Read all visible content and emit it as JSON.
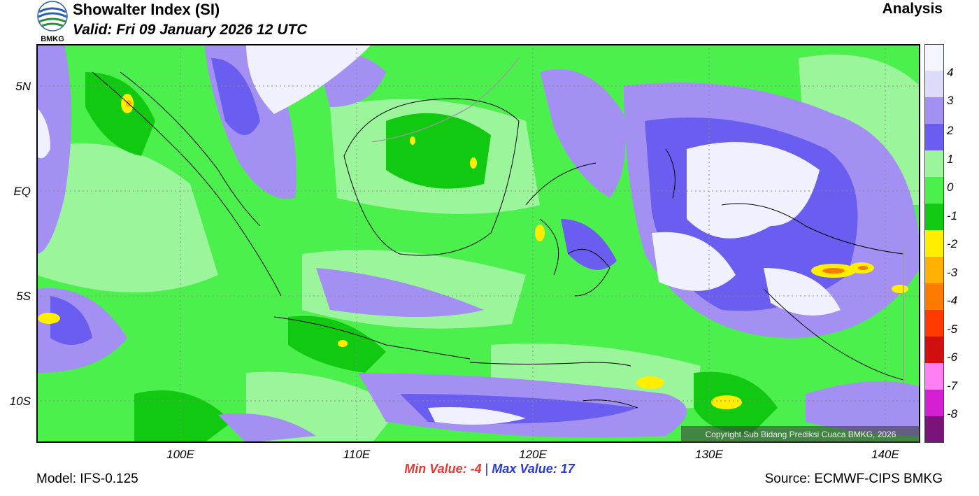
{
  "header": {
    "title": "Showalter Index (SI)",
    "valid": "Valid: Fri 09 January 2026 12 UTC",
    "analysis": "Analysis",
    "logo_text": "BMKG"
  },
  "map": {
    "lat_labels": [
      "5N",
      "EQ",
      "5S",
      "10S"
    ],
    "lon_labels": [
      "100E",
      "110E",
      "120E",
      "130E",
      "140E"
    ],
    "copyright": "Copyright Sub Bidang Prediksi Cuaca BMKG, 2026"
  },
  "colorbar": {
    "labels": [
      "4",
      "3",
      "2",
      "1",
      "0",
      "-1",
      "-2",
      "-3",
      "-4",
      "-5",
      "-6",
      "-7",
      "-8"
    ],
    "colors": [
      "#f5f5ff",
      "#dcdcfa",
      "#a390f2",
      "#6a5ef0",
      "#9bf59b",
      "#4cf04c",
      "#12c912",
      "#ffee00",
      "#ffb000",
      "#ff7a00",
      "#ff3a00",
      "#d10f0f",
      "#ff80f5",
      "#d21fd2",
      "#7a137a"
    ]
  },
  "stats": {
    "min_label": "Min Value:  -4",
    "separator": "|",
    "max_label": "Max Value:  17"
  },
  "footer": {
    "model": "Model: IFS-0.125",
    "source": "Source: ECMWF-CIPS BMKG"
  }
}
